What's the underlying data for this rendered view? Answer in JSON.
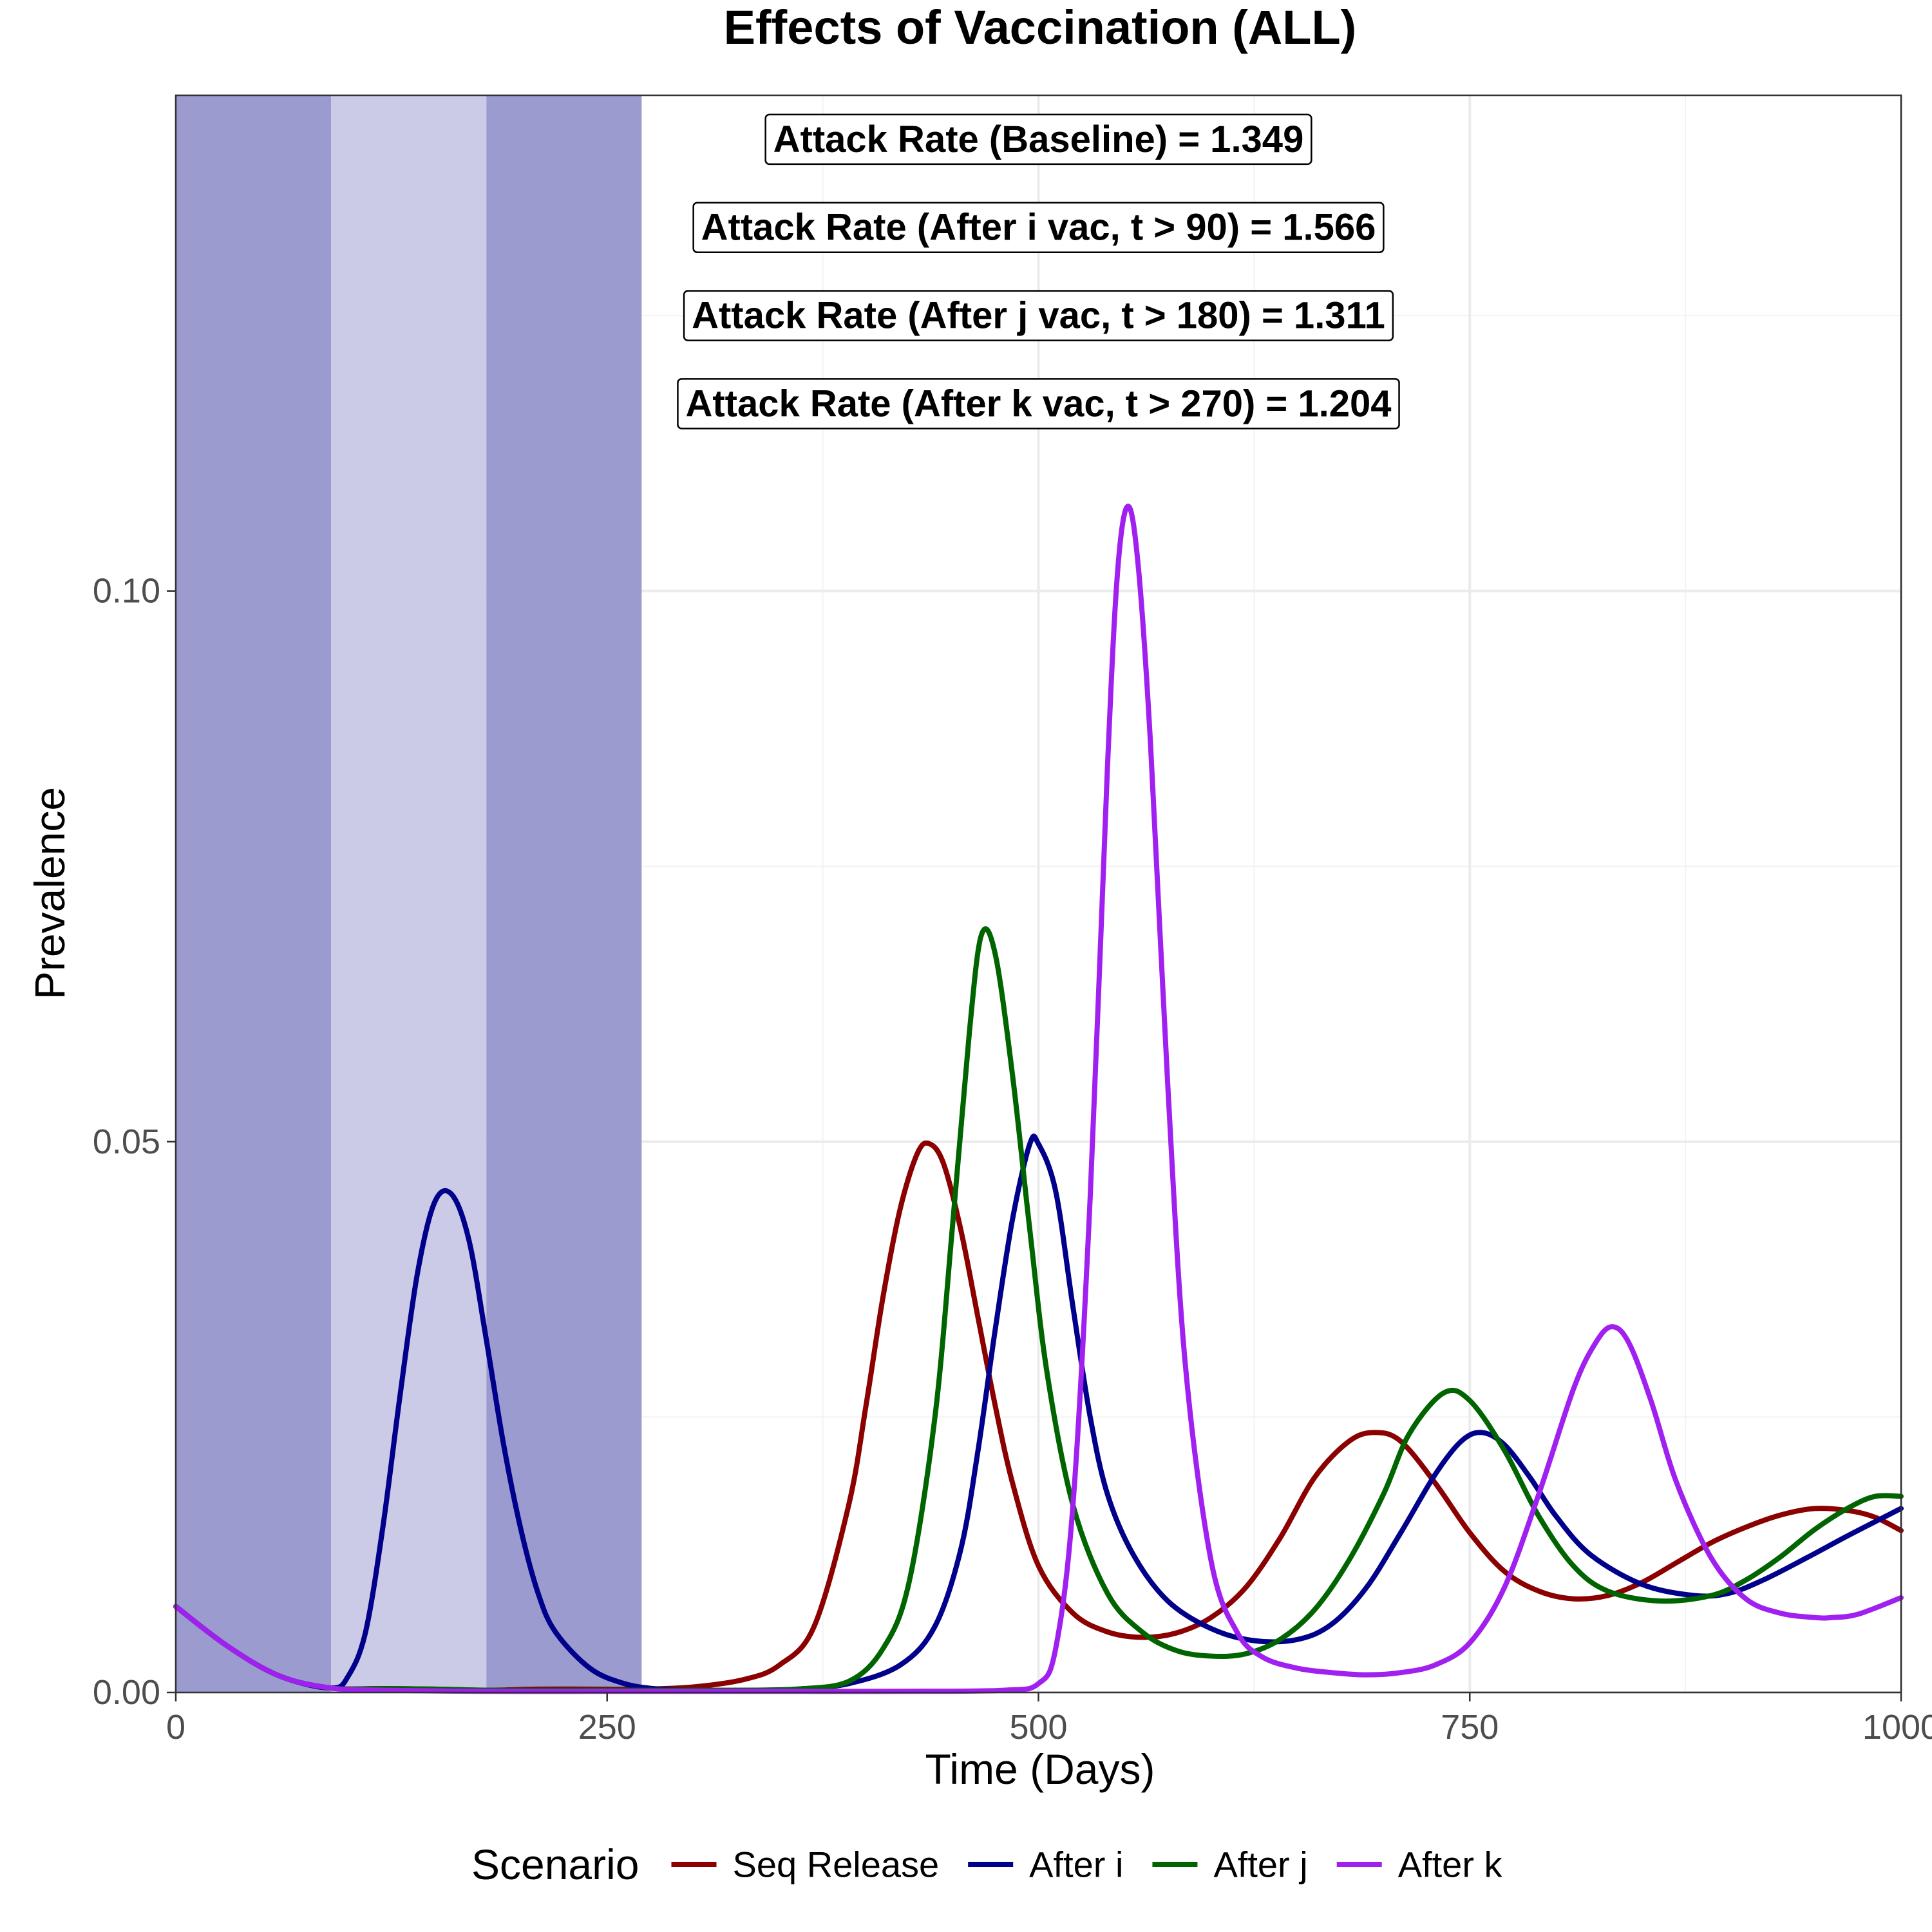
{
  "chart_data": {
    "type": "line",
    "title": "Effects of Vaccination (ALL)",
    "xlabel": "Time (Days)",
    "ylabel": "Prevalence",
    "xlim": [
      0,
      1000
    ],
    "ylim": [
      0,
      0.145
    ],
    "x_ticks": [
      0,
      250,
      500,
      750,
      1000
    ],
    "x_tick_labels": [
      "0",
      "250",
      "500",
      "750",
      "1000"
    ],
    "y_ticks": [
      0,
      0.05,
      0.1
    ],
    "y_tick_labels": [
      "0.00",
      "0.05",
      "0.10"
    ],
    "grid": true,
    "shaded_intervals": [
      {
        "x": [
          0,
          90
        ],
        "color": "#9b9bd0"
      },
      {
        "x": [
          90,
          180
        ],
        "color": "#cbcbe7"
      },
      {
        "x": [
          180,
          270
        ],
        "color": "#9b9bd0"
      }
    ],
    "annotations": [
      {
        "text": "Attack Rate (Baseline) = 1.349",
        "x": 500,
        "y": 0.141
      },
      {
        "text": "Attack Rate (After i vac, t > 90) = 1.566",
        "x": 500,
        "y": 0.133
      },
      {
        "text": "Attack Rate (After j vac, t > 180) = 1.311",
        "x": 500,
        "y": 0.125
      },
      {
        "text": "Attack Rate (After k vac, t > 270) = 1.204",
        "x": 500,
        "y": 0.117
      }
    ],
    "legend": {
      "title": "Scenario",
      "position": "bottom"
    },
    "series": [
      {
        "name": "Seq Release",
        "color": "#8b0000",
        "x": [
          0,
          30,
          60,
          90,
          120,
          150,
          180,
          210,
          240,
          270,
          300,
          330,
          350,
          370,
          390,
          400,
          410,
          420,
          430,
          437,
          445,
          455,
          465,
          475,
          485,
          500,
          520,
          540,
          560,
          580,
          600,
          620,
          640,
          660,
          680,
          695,
          710,
          730,
          750,
          770,
          790,
          810,
          830,
          850,
          870,
          890,
          910,
          930,
          950,
          970,
          985,
          1000
        ],
        "y": [
          0.0078,
          0.0042,
          0.0015,
          0.0004,
          0.00035,
          0.0003,
          0.0002,
          0.0003,
          0.0003,
          0.0003,
          0.0005,
          0.0012,
          0.0025,
          0.006,
          0.017,
          0.026,
          0.036,
          0.044,
          0.049,
          0.0498,
          0.048,
          0.042,
          0.034,
          0.026,
          0.019,
          0.0115,
          0.0072,
          0.0055,
          0.005,
          0.0054,
          0.0068,
          0.0095,
          0.014,
          0.0195,
          0.0228,
          0.0236,
          0.0228,
          0.019,
          0.0145,
          0.011,
          0.0092,
          0.0085,
          0.0088,
          0.01,
          0.0118,
          0.0136,
          0.015,
          0.0161,
          0.0167,
          0.0165,
          0.0159,
          0.0147
        ]
      },
      {
        "name": "After i",
        "color": "#00008b",
        "x": [
          0,
          30,
          60,
          90,
          100,
          110,
          120,
          130,
          140,
          150,
          160,
          170,
          180,
          190,
          200,
          210,
          220,
          240,
          260,
          280,
          300,
          330,
          360,
          390,
          420,
          440,
          455,
          465,
          475,
          485,
          495,
          500,
          510,
          520,
          530,
          540,
          555,
          575,
          600,
          625,
          650,
          670,
          690,
          710,
          730,
          745,
          757,
          770,
          785,
          800,
          820,
          850,
          880,
          900,
          920,
          945,
          970,
          1000
        ],
        "y": [
          0.0078,
          0.0042,
          0.0015,
          0.0004,
          0.0015,
          0.0055,
          0.015,
          0.027,
          0.038,
          0.0445,
          0.0452,
          0.041,
          0.032,
          0.0225,
          0.0148,
          0.009,
          0.0055,
          0.0022,
          0.0008,
          0.0003,
          0.0002,
          0.0002,
          0.0003,
          0.0008,
          0.0025,
          0.006,
          0.013,
          0.022,
          0.033,
          0.043,
          0.0498,
          0.0498,
          0.0455,
          0.035,
          0.025,
          0.018,
          0.0125,
          0.0083,
          0.0058,
          0.0047,
          0.0048,
          0.0062,
          0.0095,
          0.0145,
          0.0198,
          0.0228,
          0.0236,
          0.0225,
          0.0195,
          0.016,
          0.0125,
          0.0098,
          0.0088,
          0.009,
          0.0102,
          0.0122,
          0.0143,
          0.0167
        ]
      },
      {
        "name": "After j",
        "color": "#006400",
        "x": [
          0,
          30,
          60,
          90,
          120,
          150,
          180,
          210,
          240,
          270,
          300,
          330,
          360,
          390,
          410,
          425,
          440,
          450,
          460,
          467,
          475,
          485,
          495,
          505,
          520,
          540,
          560,
          580,
          600,
          620,
          640,
          660,
          680,
          700,
          715,
          735,
          750,
          770,
          790,
          810,
          830,
          860,
          890,
          910,
          930,
          950,
          970,
          985,
          1000
        ],
        "y": [
          0.0078,
          0.0042,
          0.0015,
          0.0004,
          0.00035,
          0.0003,
          0.0002,
          0.0002,
          0.0002,
          0.0002,
          0.0002,
          0.0002,
          0.0003,
          0.001,
          0.004,
          0.01,
          0.025,
          0.042,
          0.06,
          0.0688,
          0.067,
          0.056,
          0.042,
          0.029,
          0.017,
          0.009,
          0.0055,
          0.0038,
          0.0033,
          0.0035,
          0.0048,
          0.0075,
          0.012,
          0.018,
          0.0235,
          0.0272,
          0.0265,
          0.022,
          0.016,
          0.0115,
          0.0092,
          0.0083,
          0.0088,
          0.0102,
          0.0123,
          0.0148,
          0.0168,
          0.0178,
          0.0178
        ]
      },
      {
        "name": "After k",
        "color": "#a020f0",
        "x": [
          0,
          30,
          60,
          90,
          120,
          180,
          240,
          300,
          360,
          420,
          480,
          500,
          510,
          520,
          530,
          540,
          546,
          552,
          558,
          565,
          575,
          585,
          600,
          615,
          630,
          650,
          670,
          690,
          710,
          730,
          750,
          770,
          790,
          810,
          822,
          832,
          842,
          855,
          870,
          890,
          910,
          930,
          950,
          960,
          975,
          1000
        ],
        "y": [
          0.0078,
          0.0042,
          0.0015,
          0.0004,
          0.0002,
          0.0001,
          0.0001,
          0.0001,
          0.0001,
          0.0001,
          0.0002,
          0.0008,
          0.004,
          0.017,
          0.045,
          0.084,
          0.102,
          0.1077,
          0.102,
          0.086,
          0.055,
          0.03,
          0.012,
          0.0055,
          0.0032,
          0.0022,
          0.0018,
          0.0016,
          0.0018,
          0.0025,
          0.0045,
          0.0095,
          0.018,
          0.0275,
          0.0315,
          0.0332,
          0.0318,
          0.0265,
          0.019,
          0.0122,
          0.0085,
          0.0072,
          0.0068,
          0.0068,
          0.0071,
          0.0086
        ]
      }
    ]
  }
}
